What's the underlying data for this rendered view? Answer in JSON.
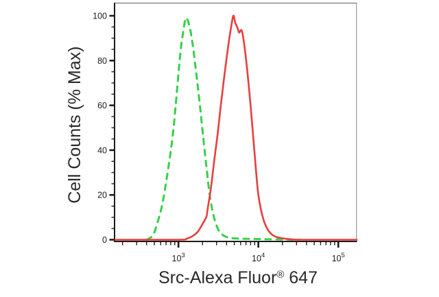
{
  "figure": {
    "background": "#ffffff",
    "xlabel": {
      "main": "Src-Alexa Fluor",
      "reg": "®",
      "suffix": " 647"
    },
    "ylabel": "Cell Counts (% Max)"
  },
  "style": {
    "axis_color": "#1b1b1b",
    "frame_top_color": "#7a7a7a",
    "frame_right_color": "#9a9a9a",
    "tick_label_color": "#1b1b1b",
    "label_color": "#2a2a2a",
    "green": "#35d148",
    "red": "#e83d3d"
  },
  "chart_data": {
    "type": "line",
    "title": "",
    "xlabel": "Src-Alexa Fluor® 647",
    "ylabel": "Cell Counts (% Max)",
    "x_scale": "log10",
    "x_range": [
      162,
      169800
    ],
    "ylim": [
      0,
      100
    ],
    "grid": false,
    "legend": "none",
    "y_major_ticks": [
      0,
      20,
      40,
      60,
      80,
      100
    ],
    "y_minor_step": 5,
    "x_major_ticks": [
      {
        "value": 1000,
        "mantissa": "10",
        "exponent": "3"
      },
      {
        "value": 10000,
        "mantissa": "10",
        "exponent": "4"
      },
      {
        "value": 100000,
        "mantissa": "10",
        "exponent": "5"
      }
    ],
    "x_minor_ticks": [
      200,
      300,
      400,
      500,
      600,
      700,
      800,
      900,
      2000,
      3000,
      4000,
      5000,
      6000,
      7000,
      8000,
      9000,
      20000,
      30000,
      40000,
      50000,
      60000,
      70000,
      80000,
      90000
    ],
    "series": [
      {
        "name": "green-dashed-control",
        "color": "#35d148",
        "style": "dashed",
        "points": [
          [
            400,
            0
          ],
          [
            480,
            2
          ],
          [
            550,
            8
          ],
          [
            630,
            16
          ],
          [
            710,
            27
          ],
          [
            790,
            38
          ],
          [
            870,
            50
          ],
          [
            935,
            62
          ],
          [
            1000,
            74
          ],
          [
            1070,
            85
          ],
          [
            1150,
            93
          ],
          [
            1230,
            98.8
          ],
          [
            1320,
            97.5
          ],
          [
            1420,
            93
          ],
          [
            1550,
            84
          ],
          [
            1700,
            72
          ],
          [
            1870,
            59
          ],
          [
            2050,
            45
          ],
          [
            2250,
            32
          ],
          [
            2460,
            20
          ],
          [
            2700,
            12
          ],
          [
            3020,
            6
          ],
          [
            3470,
            2.5
          ],
          [
            4200,
            1
          ],
          [
            5600,
            0.5
          ],
          [
            10000,
            0.3
          ],
          [
            30000,
            0
          ]
        ]
      },
      {
        "name": "red-solid-sample",
        "color": "#e83d3d",
        "style": "solid",
        "points": [
          [
            162,
            0
          ],
          [
            1000,
            0
          ],
          [
            1270,
            0.5
          ],
          [
            1480,
            1.5
          ],
          [
            1740,
            3.5
          ],
          [
            2000,
            7
          ],
          [
            2150,
            9
          ],
          [
            2250,
            10.5
          ],
          [
            2350,
            15
          ],
          [
            2570,
            24
          ],
          [
            2820,
            36
          ],
          [
            3090,
            47
          ],
          [
            3390,
            60
          ],
          [
            3720,
            72
          ],
          [
            4070,
            83
          ],
          [
            4470,
            93
          ],
          [
            4860,
            100
          ],
          [
            5130,
            97
          ],
          [
            5500,
            94.5
          ],
          [
            5750,
            92.5
          ],
          [
            6170,
            93.5
          ],
          [
            6610,
            88
          ],
          [
            7240,
            76
          ],
          [
            7940,
            61
          ],
          [
            8710,
            44
          ],
          [
            9330,
            31
          ],
          [
            10000,
            20
          ],
          [
            11000,
            12
          ],
          [
            12300,
            6.5
          ],
          [
            14100,
            3
          ],
          [
            17000,
            1.2
          ],
          [
            25000,
            0.2
          ],
          [
            36000,
            0
          ],
          [
            169800,
            0
          ]
        ]
      }
    ]
  }
}
